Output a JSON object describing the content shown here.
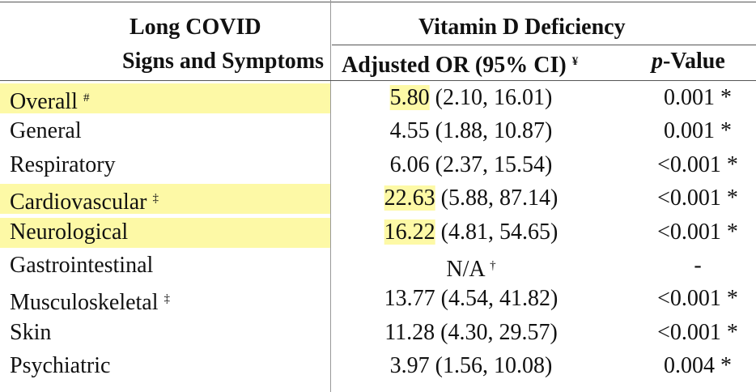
{
  "header": {
    "row_header": [
      "Long COVID",
      "Signs and Symptoms"
    ],
    "group": "Vitamin D Deficiency",
    "or_column": {
      "text": "Adjusted OR (95% CI)",
      "mark": "¥"
    },
    "p_column": {
      "italic": "p",
      "text": "-Value"
    }
  },
  "rows": [
    {
      "label": "Overall",
      "mark": "#",
      "or": "5.80",
      "ci": "(2.10, 16.01)",
      "p": "0.001 *",
      "highlight": true
    },
    {
      "label": "General",
      "or": "4.55",
      "ci": "(1.88, 10.87)",
      "p": "0.001 *"
    },
    {
      "label": "Respiratory",
      "or": "6.06",
      "ci": "(2.37, 15.54)",
      "p": "<0.001 *"
    },
    {
      "label": "Cardiovascular",
      "mark": "‡",
      "or": "22.63",
      "ci": "(5.88, 87.14)",
      "p": "<0.001 *",
      "highlight": true
    },
    {
      "label": "Neurological",
      "or": "16.22",
      "ci": "(4.81, 54.65)",
      "p": "<0.001 *",
      "highlight": true
    },
    {
      "label": "Gastrointestinal",
      "or": "N/A",
      "or_mark": "†",
      "p": "-"
    },
    {
      "label": "Musculoskeletal",
      "mark": "‡",
      "or": "13.77",
      "ci": "(4.54, 41.82)",
      "p": "<0.001 *"
    },
    {
      "label": "Skin",
      "or": "11.28",
      "ci": "(4.30, 29.57)",
      "p": "<0.001 *"
    },
    {
      "label": "Psychiatric",
      "or": "3.97",
      "ci": "(1.56, 10.08)",
      "p": "0.004 *"
    }
  ]
}
